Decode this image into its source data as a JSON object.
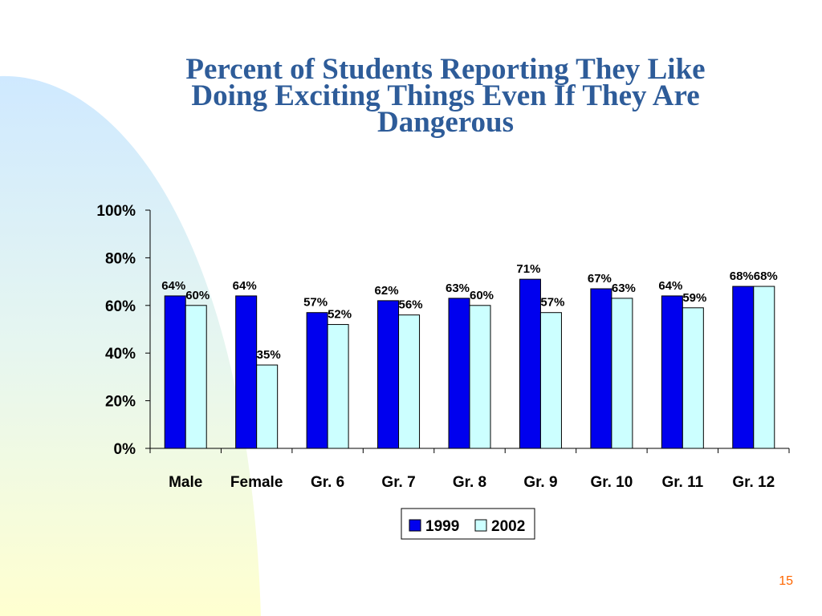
{
  "slide": {
    "title_lines": [
      "Percent of Students Reporting They Like",
      "Doing Exciting Things Even If They Are",
      "Dangerous"
    ],
    "page_number": "15"
  },
  "colors": {
    "title": "#2e5c99",
    "series_1999": "#0000ee",
    "series_2002": "#ccffff",
    "page_number": "#ff6600"
  },
  "chart_data": {
    "type": "bar",
    "title": "Percent of Students Reporting They Like Doing Exciting Things Even If They Are Dangerous",
    "categories": [
      "Male",
      "Female",
      "Gr. 6",
      "Gr. 7",
      "Gr. 8",
      "Gr. 9",
      "Gr. 10",
      "Gr. 11",
      "Gr. 12"
    ],
    "series": [
      {
        "name": "1999",
        "values": [
          64,
          64,
          57,
          62,
          63,
          71,
          67,
          64,
          68
        ]
      },
      {
        "name": "2002",
        "values": [
          60,
          35,
          52,
          56,
          60,
          57,
          63,
          59,
          68
        ]
      }
    ],
    "value_labels": [
      [
        "64%",
        "64%",
        "57%",
        "62%",
        "63%",
        "71%",
        "67%",
        "64%",
        "68%"
      ],
      [
        "60%",
        "35%",
        "52%",
        "56%",
        "60%",
        "57%",
        "63%",
        "59%",
        "68%"
      ]
    ],
    "ylim": [
      0,
      100
    ],
    "yticks": [
      0,
      20,
      40,
      60,
      80,
      100
    ],
    "ytick_labels": [
      "0%",
      "20%",
      "40%",
      "60%",
      "80%",
      "100%"
    ],
    "legend": {
      "placement": "bottom-center",
      "entries": [
        "1999",
        "2002"
      ]
    },
    "grid": false
  }
}
